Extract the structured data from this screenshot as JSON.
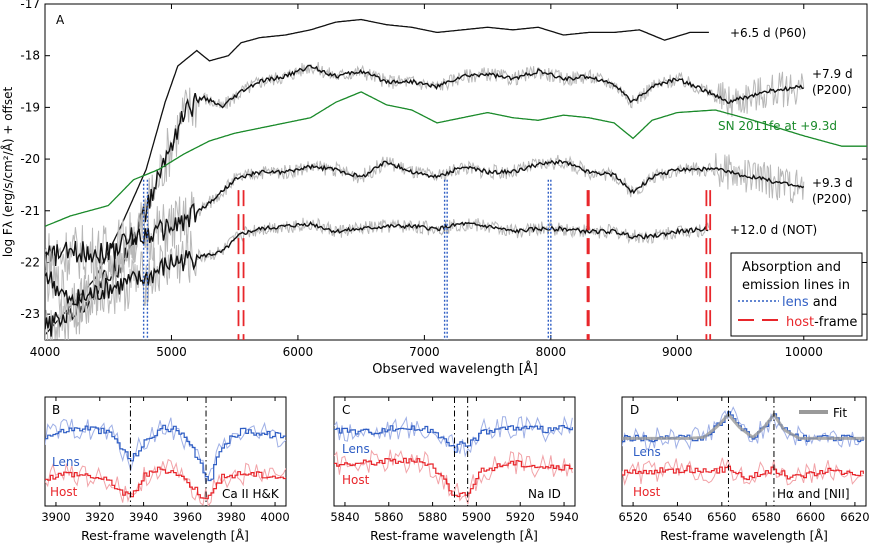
{
  "colors": {
    "black": "#111111",
    "grey_raw": "#b8b8b8",
    "green": "#1a8a2a",
    "blue": "#2f5ec4",
    "blue_light": "#9fb0e6",
    "red": "#e8262b",
    "red_light": "#f2a3a8",
    "fit_grey": "#9a9a9a"
  },
  "chart_data": [
    {
      "id": "A",
      "panel_label": "A",
      "type": "line",
      "xlabel": "Observed wavelength [Å]",
      "ylabel": "log Fλ (erg/s/cm²/Å) + offset",
      "xlim": [
        4000,
        10500
      ],
      "ylim": [
        -23.5,
        -17.0
      ],
      "xticks": [
        4000,
        5000,
        6000,
        7000,
        8000,
        9000,
        10000
      ],
      "xtick_labels": [
        "4000",
        "5000",
        "6000",
        "7000",
        "8000",
        "9000",
        "10000"
      ],
      "yticks": [
        -23,
        -22,
        -21,
        -20,
        -19,
        -18,
        -17
      ],
      "ytick_labels": [
        "-23",
        "-22",
        "-21",
        "-20",
        "-19",
        "-18",
        "-17"
      ],
      "series": [
        {
          "name": "+6.5 d (P60)",
          "label_lines": [
            "+6.5 d (P60)"
          ],
          "color": "black",
          "noisy": false,
          "x": [
            4000,
            4400,
            4600,
            4800,
            4950,
            5050,
            5200,
            5300,
            5450,
            5550,
            5700,
            5900,
            6100,
            6300,
            6500,
            6700,
            6900,
            7100,
            7300,
            7500,
            7700,
            7900,
            8100,
            8300,
            8500,
            8700,
            8900,
            9100,
            9250
          ],
          "y": [
            -23.4,
            -22.3,
            -21.3,
            -20.2,
            -18.9,
            -18.2,
            -17.9,
            -18.1,
            -18.0,
            -17.75,
            -17.65,
            -17.6,
            -17.5,
            -17.35,
            -17.3,
            -17.4,
            -17.45,
            -17.55,
            -17.5,
            -17.45,
            -17.5,
            -17.45,
            -17.6,
            -17.55,
            -17.55,
            -17.5,
            -17.7,
            -17.55,
            -17.55
          ]
        },
        {
          "name": "+7.9 d (P200)",
          "label_lines": [
            "+7.9 d",
            "(P200)"
          ],
          "color": "black",
          "noisy": true,
          "x": [
            4000,
            4300,
            4600,
            4800,
            4950,
            5100,
            5250,
            5400,
            5550,
            5700,
            5900,
            6100,
            6300,
            6500,
            6700,
            6900,
            7100,
            7300,
            7500,
            7700,
            7900,
            8100,
            8300,
            8500,
            8650,
            8800,
            9000,
            9200,
            9400,
            9700,
            10000
          ],
          "y": [
            -23.3,
            -22.8,
            -22.0,
            -21.0,
            -20.0,
            -19.1,
            -18.8,
            -19.0,
            -18.7,
            -18.5,
            -18.4,
            -18.2,
            -18.4,
            -18.3,
            -18.5,
            -18.5,
            -18.6,
            -18.4,
            -18.35,
            -18.45,
            -18.3,
            -18.45,
            -18.4,
            -18.55,
            -18.9,
            -18.6,
            -18.45,
            -18.65,
            -18.9,
            -18.7,
            -18.6
          ]
        },
        {
          "name": "SN 2011fe at +9.3d",
          "label_lines": [
            "SN 2011fe at +9.3d"
          ],
          "color": "green",
          "noisy": false,
          "x": [
            4000,
            4200,
            4500,
            4700,
            4900,
            5100,
            5300,
            5500,
            5700,
            5900,
            6100,
            6300,
            6500,
            6700,
            6900,
            7100,
            7300,
            7500,
            7700,
            7900,
            8100,
            8300,
            8500,
            8650,
            8800,
            9000,
            9300,
            9600,
            10000,
            10300,
            10500
          ],
          "y": [
            -21.3,
            -21.1,
            -20.9,
            -20.4,
            -20.2,
            -19.9,
            -19.65,
            -19.5,
            -19.4,
            -19.3,
            -19.2,
            -18.9,
            -18.7,
            -18.95,
            -19.05,
            -19.3,
            -19.2,
            -19.1,
            -19.2,
            -19.25,
            -19.15,
            -19.2,
            -19.3,
            -19.6,
            -19.25,
            -19.1,
            -19.05,
            -19.25,
            -19.55,
            -19.75,
            -19.75
          ]
        },
        {
          "name": "+9.3 d (P200)",
          "label_lines": [
            "+9.3 d",
            "(P200)"
          ],
          "color": "black",
          "noisy": true,
          "x": [
            4000,
            4200,
            4500,
            4700,
            4900,
            5100,
            5300,
            5500,
            5700,
            5900,
            6100,
            6300,
            6500,
            6700,
            6900,
            7100,
            7300,
            7500,
            7700,
            7900,
            8100,
            8300,
            8500,
            8650,
            8800,
            9000,
            9300,
            9600,
            10000
          ],
          "y": [
            -21.9,
            -21.8,
            -21.8,
            -21.5,
            -21.4,
            -21.2,
            -20.85,
            -20.4,
            -20.25,
            -20.25,
            -20.15,
            -20.2,
            -20.35,
            -20.05,
            -20.25,
            -20.35,
            -20.15,
            -20.25,
            -20.25,
            -20.1,
            -20.05,
            -20.25,
            -20.3,
            -20.65,
            -20.35,
            -20.2,
            -20.2,
            -20.35,
            -20.55
          ]
        },
        {
          "name": "+12.0 d (NOT)",
          "label_lines": [
            "+12.0 d (NOT)"
          ],
          "color": "black",
          "noisy": true,
          "x": [
            4000,
            4200,
            4500,
            4800,
            5000,
            5200,
            5400,
            5550,
            5700,
            5900,
            6100,
            6300,
            6500,
            6700,
            6900,
            7100,
            7300,
            7500,
            7700,
            7900,
            8100,
            8300,
            8500,
            8650,
            8800,
            9000,
            9250
          ],
          "y": [
            -22.2,
            -22.8,
            -22.5,
            -22.3,
            -22.0,
            -21.9,
            -21.8,
            -21.45,
            -21.35,
            -21.3,
            -21.25,
            -21.4,
            -21.35,
            -21.3,
            -21.3,
            -21.35,
            -21.25,
            -21.3,
            -21.4,
            -21.35,
            -21.35,
            -21.4,
            -21.4,
            -21.5,
            -21.5,
            -21.4,
            -21.35
          ]
        }
      ],
      "lens_lines_x": [
        4780,
        4810,
        7160,
        7180,
        7980,
        8000
      ],
      "host_lines_x": [
        5530,
        5570,
        8290,
        8300,
        9230,
        9260
      ],
      "legend": {
        "title_line1": "Absorption and",
        "title_line2": "emission lines in",
        "lens_word": "lens",
        "lens_suffix": " and",
        "host_word": "host",
        "host_suffix": "-frame",
        "location": "lower-right"
      }
    },
    {
      "id": "B",
      "panel_label": "B",
      "type": "line",
      "xlabel": "Rest-frame wavelength [Å]",
      "xlim": [
        3895,
        4005
      ],
      "ylim": [
        0,
        1
      ],
      "xticks": [
        3900,
        3920,
        3940,
        3960,
        3980,
        4000
      ],
      "xtick_labels": [
        "3900",
        "3920",
        "3940",
        "3960",
        "3980",
        "4000"
      ],
      "markers_x": [
        3934,
        3968.5
      ],
      "series_labels": [
        "Lens",
        "Host"
      ],
      "annotation": "Ca II H&K",
      "series": [
        {
          "name": "Lens",
          "color": "blue",
          "x": [
            3895,
            3905,
            3915,
            3925,
            3930,
            3934,
            3940,
            3948,
            3955,
            3962,
            3966,
            3970,
            3975,
            3985,
            3995,
            4005
          ],
          "y": [
            0.64,
            0.7,
            0.72,
            0.66,
            0.52,
            0.42,
            0.58,
            0.72,
            0.7,
            0.52,
            0.36,
            0.22,
            0.55,
            0.7,
            0.66,
            0.64
          ]
        },
        {
          "name": "Host",
          "color": "red",
          "x": [
            3895,
            3905,
            3915,
            3925,
            3930,
            3934,
            3940,
            3948,
            3955,
            3962,
            3966,
            3970,
            3975,
            3985,
            3995,
            4005
          ],
          "y": [
            0.26,
            0.3,
            0.28,
            0.22,
            0.12,
            0.08,
            0.28,
            0.34,
            0.3,
            0.18,
            0.1,
            0.08,
            0.26,
            0.3,
            0.28,
            0.26
          ]
        }
      ]
    },
    {
      "id": "C",
      "panel_label": "C",
      "type": "line",
      "xlabel": "Rest-frame wavelength [Å]",
      "xlim": [
        5835,
        5945
      ],
      "ylim": [
        0,
        1
      ],
      "xticks": [
        5840,
        5860,
        5880,
        5900,
        5920,
        5940
      ],
      "xtick_labels": [
        "5840",
        "5860",
        "5880",
        "5900",
        "5920",
        "5940"
      ],
      "markers_x": [
        5890,
        5896
      ],
      "series_labels": [
        "Lens",
        "Host"
      ],
      "annotation": "Na ID",
      "series": [
        {
          "name": "Lens",
          "color": "blue",
          "x": [
            5835,
            5850,
            5865,
            5878,
            5886,
            5890,
            5893,
            5896,
            5902,
            5915,
            5930,
            5945
          ],
          "y": [
            0.7,
            0.68,
            0.72,
            0.7,
            0.62,
            0.52,
            0.58,
            0.55,
            0.68,
            0.72,
            0.7,
            0.72
          ]
        },
        {
          "name": "Host",
          "color": "red",
          "x": [
            5835,
            5850,
            5865,
            5878,
            5886,
            5890,
            5893,
            5896,
            5902,
            5915,
            5930,
            5945
          ],
          "y": [
            0.38,
            0.4,
            0.42,
            0.4,
            0.22,
            0.08,
            0.16,
            0.1,
            0.32,
            0.4,
            0.36,
            0.34
          ]
        }
      ]
    },
    {
      "id": "D",
      "panel_label": "D",
      "type": "line",
      "xlabel": "Rest-frame wavelength [Å]",
      "xlim": [
        6515,
        6625
      ],
      "ylim": [
        0,
        1
      ],
      "xticks": [
        6520,
        6540,
        6560,
        6580,
        6600,
        6620
      ],
      "xtick_labels": [
        "6520",
        "6540",
        "6560",
        "6580",
        "6600",
        "6620"
      ],
      "markers_x": [
        6563,
        6583.5
      ],
      "series_labels": [
        "Lens",
        "Host"
      ],
      "annotation": "Hα and [NII]",
      "legend_entry": "Fit",
      "series": [
        {
          "name": "Lens",
          "color": "blue",
          "x": [
            6515,
            6530,
            6545,
            6552,
            6558,
            6563,
            6568,
            6574,
            6579,
            6583.5,
            6588,
            6595,
            6610,
            6625
          ],
          "y": [
            0.62,
            0.62,
            0.62,
            0.63,
            0.74,
            0.86,
            0.72,
            0.63,
            0.72,
            0.86,
            0.7,
            0.62,
            0.62,
            0.62
          ]
        },
        {
          "name": "Fit",
          "color": "fit_grey",
          "x": [
            6515,
            6545,
            6552,
            6558,
            6563,
            6568,
            6574,
            6579,
            6583.5,
            6588,
            6595,
            6625
          ],
          "y": [
            0.62,
            0.62,
            0.63,
            0.73,
            0.84,
            0.72,
            0.63,
            0.72,
            0.84,
            0.7,
            0.62,
            0.62
          ]
        },
        {
          "name": "Host",
          "color": "red",
          "x": [
            6515,
            6530,
            6545,
            6555,
            6563,
            6570,
            6578,
            6583.5,
            6590,
            6600,
            6610,
            6625
          ],
          "y": [
            0.3,
            0.32,
            0.34,
            0.3,
            0.36,
            0.26,
            0.3,
            0.34,
            0.26,
            0.3,
            0.32,
            0.3
          ]
        }
      ]
    }
  ]
}
